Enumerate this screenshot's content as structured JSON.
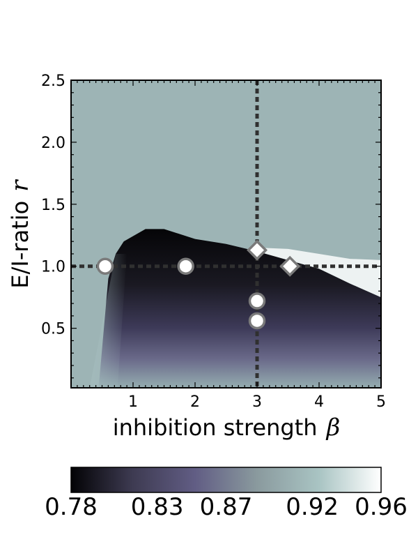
{
  "chart_data": {
    "type": "heatmap",
    "title": "",
    "xlabel": "inhibition strength",
    "xlabel_symbol": "β",
    "ylabel": "E/I-ratio",
    "ylabel_symbol": "r",
    "xlim": [
      0.0,
      5.0
    ],
    "ylim": [
      0.02,
      2.5
    ],
    "xticks": [
      1,
      2,
      3,
      4,
      5
    ],
    "yticks": [
      0.5,
      1.0,
      1.5,
      2.0,
      2.5
    ],
    "xtick_labels": [
      "1",
      "2",
      "3",
      "4",
      "5"
    ],
    "ytick_labels": [
      "0.5",
      "1.0",
      "1.5",
      "2.0",
      "2.5"
    ],
    "colormap": {
      "vmin": 0.78,
      "vmax": 0.96,
      "stops": [
        "#030305",
        "#3e3b52",
        "#615d84",
        "#8a9a9e",
        "#a9c4c3",
        "#ffffff"
      ],
      "tick_values": [
        0.78,
        0.83,
        0.87,
        0.92,
        0.96
      ],
      "tick_labels": [
        "0.78",
        "0.83",
        "0.87",
        "0.92",
        "0.96"
      ]
    },
    "regions": {
      "background_value": 0.91,
      "dark_upper_boundary": [
        [
          0.45,
          0.05
        ],
        [
          0.6,
          0.9
        ],
        [
          0.72,
          1.1
        ],
        [
          0.85,
          1.2
        ],
        [
          1.2,
          1.3
        ],
        [
          1.5,
          1.3
        ],
        [
          2.0,
          1.22
        ],
        [
          2.5,
          1.18
        ],
        [
          3.0,
          1.12
        ],
        [
          3.5,
          1.05
        ],
        [
          4.0,
          0.98
        ],
        [
          4.5,
          0.86
        ],
        [
          5.0,
          0.75
        ]
      ],
      "bright_band_upper": [
        [
          3.0,
          1.15
        ],
        [
          3.5,
          1.14
        ],
        [
          4.0,
          1.1
        ],
        [
          4.5,
          1.06
        ],
        [
          5.0,
          1.05
        ]
      ]
    },
    "reference_lines": [
      {
        "orientation": "horizontal",
        "value": 1.0,
        "style": "dotted"
      },
      {
        "orientation": "vertical",
        "value": 3.0,
        "style": "dotted"
      }
    ],
    "markers": [
      {
        "shape": "circle",
        "x": 0.55,
        "y": 1.0
      },
      {
        "shape": "circle",
        "x": 1.85,
        "y": 1.0
      },
      {
        "shape": "circle",
        "x": 3.0,
        "y": 0.72
      },
      {
        "shape": "circle",
        "x": 3.0,
        "y": 0.56
      },
      {
        "shape": "diamond",
        "x": 3.0,
        "y": 1.13
      },
      {
        "shape": "diamond",
        "x": 3.53,
        "y": 1.0
      }
    ],
    "grid": false,
    "legend": "none"
  }
}
